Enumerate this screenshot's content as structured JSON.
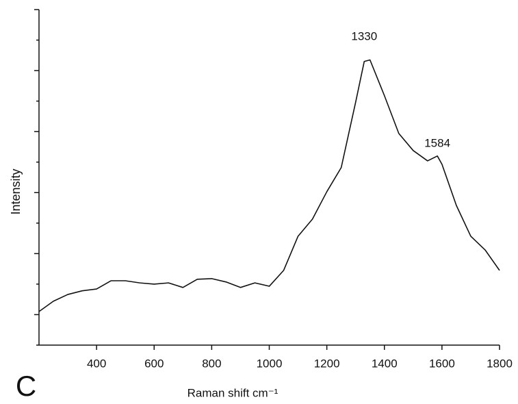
{
  "chart_data": {
    "type": "line",
    "x_label": "Raman shift cm⁻¹",
    "y_label": "Intensity",
    "panel_label": "C",
    "x": [
      200,
      250,
      300,
      350,
      400,
      450,
      500,
      550,
      600,
      650,
      700,
      750,
      800,
      850,
      900,
      950,
      1000,
      1050,
      1100,
      1150,
      1200,
      1250,
      1300,
      1330,
      1350,
      1400,
      1450,
      1500,
      1550,
      1584,
      1600,
      1650,
      1700,
      1750,
      1800
    ],
    "series": [
      {
        "name": "Intensity",
        "color": "#111111",
        "values": [
          1.1,
          1.44,
          1.66,
          1.78,
          1.84,
          2.11,
          2.11,
          2.04,
          2.0,
          2.04,
          1.89,
          2.16,
          2.18,
          2.07,
          1.89,
          2.04,
          1.93,
          2.45,
          3.57,
          4.13,
          5.03,
          5.82,
          7.96,
          9.3,
          9.35,
          8.18,
          6.94,
          6.38,
          6.04,
          6.2,
          5.93,
          4.58,
          3.57,
          3.12,
          2.45
        ]
      }
    ],
    "annotations": [
      {
        "text": "1330",
        "x": 1330,
        "y": 10.1
      },
      {
        "text": "1584",
        "x": 1584,
        "y": 6.6
      }
    ],
    "xlim": [
      200,
      1800
    ],
    "xticks": [
      400,
      600,
      800,
      1000,
      1200,
      1400,
      1600,
      1800
    ],
    "ylim": [
      0,
      11
    ],
    "yticks": [
      0,
      1,
      2,
      3,
      4,
      5,
      6,
      7,
      8,
      9,
      10,
      11
    ],
    "grid": false
  }
}
